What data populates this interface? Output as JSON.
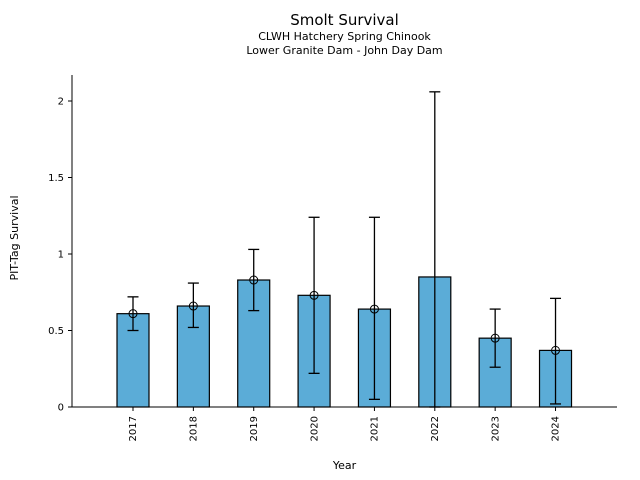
{
  "chart_data": {
    "type": "bar",
    "title": "Smolt Survival",
    "subtitle_line1": "CLWH Hatchery Spring Chinook",
    "subtitle_line2": "Lower Granite Dam - John Day Dam",
    "xlabel": "Year",
    "ylabel": "PIT-Tag Survival",
    "categories": [
      "2017",
      "2018",
      "2019",
      "2020",
      "2021",
      "2022",
      "2023",
      "2024"
    ],
    "values": [
      0.61,
      0.66,
      0.83,
      0.73,
      0.64,
      0.85,
      0.45,
      0.37
    ],
    "error_low": [
      0.5,
      0.52,
      0.63,
      0.22,
      0.05,
      0.0,
      0.26,
      0.02
    ],
    "error_high": [
      0.72,
      0.81,
      1.03,
      1.24,
      1.24,
      2.06,
      0.64,
      0.71
    ],
    "point_markers": [
      0.61,
      0.66,
      0.83,
      0.73,
      0.64,
      null,
      0.45,
      0.37
    ],
    "yticks": [
      0,
      0.5,
      1,
      1.5,
      2
    ],
    "ylim": [
      0,
      2.17
    ],
    "grid": false,
    "legend": "none",
    "bar_color": "#5BACD7",
    "bar_edge_color": "#000000",
    "error_color": "#000000",
    "marker": "open-circle"
  }
}
